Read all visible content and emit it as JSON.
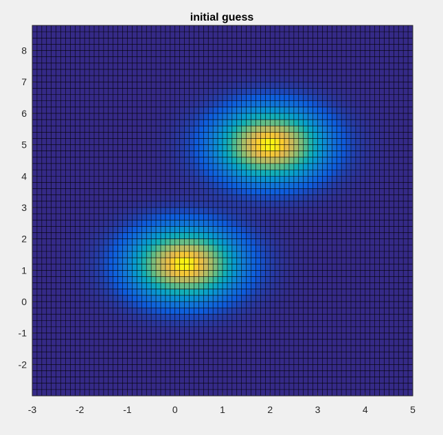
{
  "chart_data": {
    "type": "heatmap",
    "title": "initial guess",
    "xlabel": "",
    "ylabel": "",
    "xlim": [
      -3,
      5
    ],
    "ylim": [
      -3,
      8.8
    ],
    "x_ticks": [
      "-3",
      "-2",
      "-1",
      "0",
      "1",
      "2",
      "3",
      "4",
      "5"
    ],
    "y_ticks": [
      "-2",
      "-1",
      "0",
      "1",
      "2",
      "3",
      "4",
      "5",
      "6",
      "7",
      "8"
    ],
    "grid": {
      "x_step": 0.1,
      "y_step": 0.2,
      "edge_color": "#000000"
    },
    "surface": {
      "description_of_values": "sum of two Gaussian peaks viewed from above",
      "peaks": [
        {
          "center": [
            0.2,
            1.2
          ],
          "sigma": [
            0.75,
            0.75
          ],
          "amplitude": 1.0
        },
        {
          "center": [
            2.0,
            5.0
          ],
          "sigma": [
            0.75,
            0.75
          ],
          "amplitude": 1.0
        }
      ],
      "z_range": [
        0,
        1.0
      ]
    },
    "colormap": "parula"
  },
  "colors": {
    "background": "#f0f0f0",
    "axes_background": "#ffffff",
    "axis_line": "#262626"
  }
}
